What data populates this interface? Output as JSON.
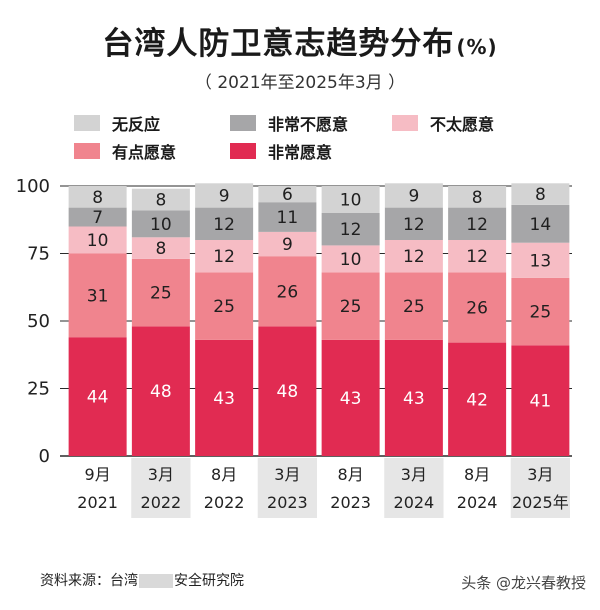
{
  "header": {
    "title": "台湾人防卫意志趋势分布",
    "title_unit": "(%)",
    "subtitle": "（ 2021年至2025年3月 ）"
  },
  "legend": [
    {
      "label": "无反应",
      "color": "#d3d3d3"
    },
    {
      "label": "非常不愿意",
      "color": "#a6a6a8"
    },
    {
      "label": "不太愿意",
      "color": "#f6bcc4"
    },
    {
      "label": "有点愿意",
      "color": "#f0848e"
    },
    {
      "label": "非常愿意",
      "color": "#e12b52"
    }
  ],
  "chart_data": {
    "type": "bar",
    "stacked": true,
    "categories": [
      "9月\n2021",
      "3月\n2022",
      "8月\n2022",
      "3月\n2023",
      "8月\n2023",
      "3月\n2024",
      "8月\n2024",
      "3月\n2025年"
    ],
    "category_labels": [
      {
        "month": "9月",
        "year": "2021"
      },
      {
        "month": "3月",
        "year": "2022"
      },
      {
        "month": "8月",
        "year": "2022"
      },
      {
        "month": "3月",
        "year": "2023"
      },
      {
        "month": "8月",
        "year": "2023"
      },
      {
        "month": "3月",
        "year": "2024"
      },
      {
        "month": "8月",
        "year": "2024"
      },
      {
        "month": "3月",
        "year": "2025年"
      }
    ],
    "series": [
      {
        "name": "非常愿意",
        "color": "#e12b52",
        "values": [
          44,
          48,
          43,
          48,
          43,
          43,
          42,
          41
        ]
      },
      {
        "name": "有点愿意",
        "color": "#f0848e",
        "values": [
          31,
          25,
          25,
          26,
          25,
          25,
          26,
          25
        ]
      },
      {
        "name": "不太愿意",
        "color": "#f6bcc4",
        "values": [
          10,
          8,
          12,
          9,
          10,
          12,
          12,
          13
        ]
      },
      {
        "name": "非常不愿意",
        "color": "#a6a6a8",
        "values": [
          7,
          10,
          12,
          11,
          12,
          12,
          12,
          14
        ]
      },
      {
        "name": "无反应",
        "color": "#d3d3d3",
        "values": [
          8,
          8,
          9,
          6,
          10,
          9,
          8,
          8
        ]
      }
    ],
    "yticks": [
      0,
      25,
      50,
      75,
      100
    ],
    "ylim": [
      0,
      100
    ],
    "highlighted_categories": [
      1,
      3,
      5,
      7
    ],
    "highlight_color": "#e6e6e6"
  },
  "footer": {
    "source_prefix": "资料来源：台湾",
    "source_suffix": "安全研究院",
    "watermark": "头条 @龙兴春教授"
  }
}
